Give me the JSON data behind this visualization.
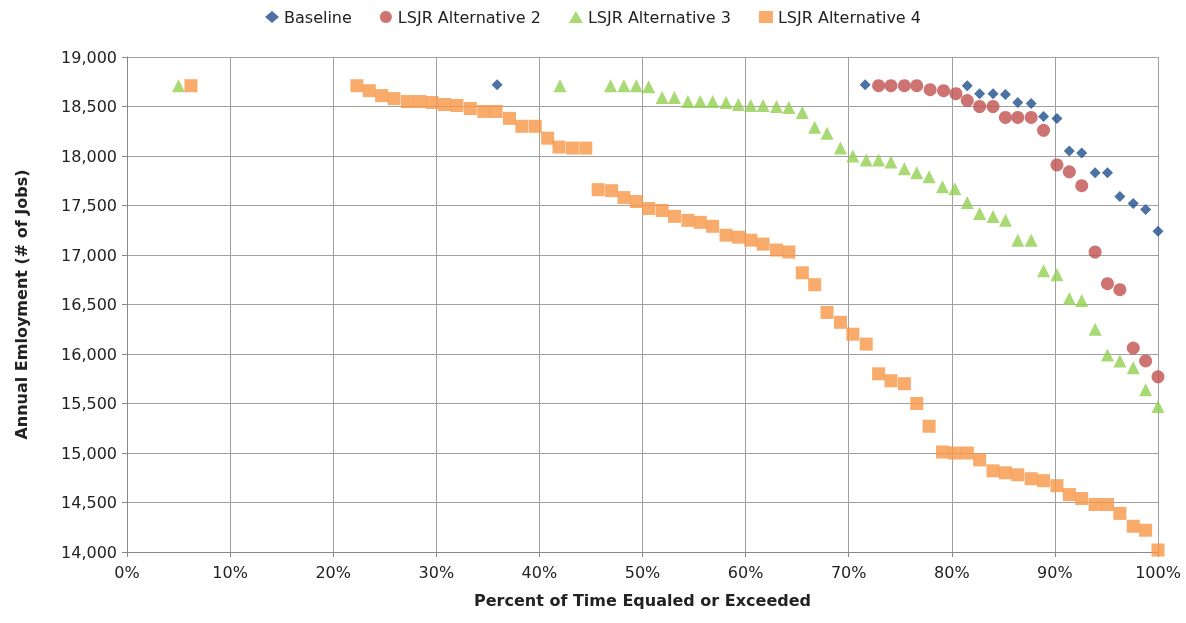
{
  "chart_data": {
    "type": "scatter",
    "xlabel": "Percent of Time Equaled or Exceeded",
    "ylabel": "Annual Emloyment (# of Jobs)",
    "legend": "top",
    "grid": true,
    "xlim": [
      0,
      100
    ],
    "xticks": [
      {
        "value": 0,
        "label": "0%"
      },
      {
        "value": 10,
        "label": "10%"
      },
      {
        "value": 20,
        "label": "20%"
      },
      {
        "value": 30,
        "label": "30%"
      },
      {
        "value": 40,
        "label": "40%"
      },
      {
        "value": 50,
        "label": "50%"
      },
      {
        "value": 60,
        "label": "60%"
      },
      {
        "value": 70,
        "label": "70%"
      },
      {
        "value": 80,
        "label": "80%"
      },
      {
        "value": 90,
        "label": "90%"
      },
      {
        "value": 100,
        "label": "100%"
      }
    ],
    "ylim": [
      14000,
      19000
    ],
    "yticks": [
      {
        "value": 14000,
        "label": "14,000"
      },
      {
        "value": 14500,
        "label": "14,500"
      },
      {
        "value": 15000,
        "label": "15,000"
      },
      {
        "value": 15500,
        "label": "15,500"
      },
      {
        "value": 16000,
        "label": "16,000"
      },
      {
        "value": 16500,
        "label": "16,500"
      },
      {
        "value": 17000,
        "label": "17,000"
      },
      {
        "value": 17500,
        "label": "17,500"
      },
      {
        "value": 18000,
        "label": "18,000"
      },
      {
        "value": 18500,
        "label": "18,500"
      },
      {
        "value": 19000,
        "label": "19,000"
      }
    ],
    "series": [
      {
        "name": "Baseline",
        "color": "#1f4e8c",
        "marker": "diamond",
        "x": [
          35.9,
          71.6,
          81.5,
          82.7,
          84.0,
          85.2,
          86.4,
          87.7,
          88.9,
          90.2,
          91.4,
          92.6,
          93.9,
          95.1,
          96.3,
          97.6,
          98.8,
          100
        ],
        "values": [
          18720,
          18720,
          18710,
          18630,
          18630,
          18620,
          18540,
          18530,
          18400,
          18380,
          18050,
          18030,
          17830,
          17830,
          17590,
          17520,
          17460,
          17240
        ]
      },
      {
        "name": "LSJR Alternative 2",
        "color": "#c0504d",
        "marker": "circle",
        "x": [
          72.9,
          74.1,
          75.4,
          76.6,
          77.9,
          79.2,
          80.4,
          81.5,
          82.7,
          84.0,
          85.2,
          86.4,
          87.7,
          88.9,
          90.2,
          91.4,
          92.6,
          93.9,
          95.1,
          96.3,
          97.6,
          98.8,
          100
        ],
        "values": [
          18710,
          18710,
          18710,
          18710,
          18670,
          18660,
          18630,
          18560,
          18500,
          18500,
          18390,
          18390,
          18390,
          18260,
          17910,
          17840,
          17700,
          17030,
          16710,
          16650,
          16060,
          15930,
          15770
        ]
      },
      {
        "name": "LSJR Alternative 3",
        "color": "#92d050",
        "marker": "triangle",
        "x": [
          5.0,
          42.0,
          46.9,
          48.2,
          49.4,
          50.6,
          51.9,
          53.1,
          54.4,
          55.6,
          56.8,
          58.1,
          59.3,
          60.5,
          61.7,
          63.0,
          64.2,
          65.5,
          66.7,
          67.9,
          69.2,
          70.4,
          71.7,
          72.9,
          74.1,
          75.4,
          76.6,
          77.8,
          79.1,
          80.3,
          81.5,
          82.7,
          84.0,
          85.2,
          86.4,
          87.7,
          88.9,
          90.2,
          91.4,
          92.6,
          93.9,
          95.1,
          96.3,
          97.6,
          98.8,
          100
        ],
        "values": [
          18710,
          18710,
          18710,
          18710,
          18710,
          18700,
          18590,
          18590,
          18550,
          18550,
          18550,
          18540,
          18520,
          18510,
          18510,
          18500,
          18490,
          18440,
          18290,
          18230,
          18080,
          18000,
          17960,
          17960,
          17940,
          17870,
          17830,
          17790,
          17690,
          17670,
          17530,
          17420,
          17390,
          17350,
          17150,
          17150,
          16840,
          16800,
          16560,
          16540,
          16250,
          15990,
          15930,
          15860,
          15640,
          15470
        ]
      },
      {
        "name": "LSJR Alternative 4",
        "color": "#f79646",
        "marker": "square",
        "x": [
          6.2,
          22.3,
          23.5,
          24.7,
          25.9,
          27.2,
          28.4,
          29.6,
          30.8,
          32.0,
          33.3,
          34.6,
          35.8,
          37.1,
          38.3,
          39.6,
          40.8,
          41.9,
          43.2,
          44.5,
          45.7,
          47.0,
          48.2,
          49.4,
          50.6,
          51.9,
          53.1,
          54.4,
          55.6,
          56.8,
          58.1,
          59.3,
          60.5,
          61.7,
          63.0,
          64.2,
          65.5,
          66.7,
          67.9,
          69.2,
          70.4,
          71.7,
          72.9,
          74.1,
          75.4,
          76.6,
          77.8,
          79.1,
          80.3,
          81.5,
          82.7,
          84.0,
          85.2,
          86.4,
          87.7,
          88.9,
          90.2,
          91.4,
          92.6,
          93.9,
          95.1,
          96.3,
          97.6,
          98.8,
          100
        ],
        "values": [
          18710,
          18710,
          18660,
          18610,
          18580,
          18550,
          18550,
          18540,
          18520,
          18510,
          18480,
          18450,
          18450,
          18380,
          18300,
          18300,
          18180,
          18090,
          18080,
          18080,
          17660,
          17650,
          17580,
          17540,
          17470,
          17450,
          17390,
          17350,
          17330,
          17290,
          17200,
          17180,
          17150,
          17110,
          17050,
          17030,
          16820,
          16700,
          16420,
          16320,
          16200,
          16100,
          15800,
          15730,
          15700,
          15500,
          15270,
          15010,
          15000,
          15000,
          14930,
          14820,
          14800,
          14780,
          14740,
          14720,
          14670,
          14580,
          14540,
          14480,
          14480,
          14390,
          14260,
          14220,
          14020
        ]
      }
    ]
  }
}
